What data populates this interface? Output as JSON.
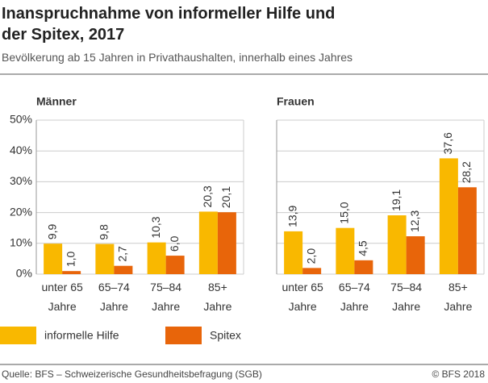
{
  "title": "Inanspruchnahme von informeller Hilfe und der Spitex, 2017",
  "subtitle": "Bevölkerung ab 15 Jahren in Privathaushalten, innerhalb eines Jahres",
  "source": "Quelle: BFS – Schweizerische Gesundheitsbefragung (SGB)",
  "credit": "© BFS 2018",
  "chart_data": [
    {
      "type": "bar",
      "title": "Männer",
      "categories": [
        "unter 65 Jahre",
        "65–74 Jahre",
        "75–84 Jahre",
        "85+ Jahre"
      ],
      "series": [
        {
          "name": "informelle Hilfe",
          "color": "#f9b800",
          "values": [
            9.9,
            9.8,
            10.3,
            20.3
          ],
          "value_labels": [
            "9,9",
            "9,8",
            "10,3",
            "20,3"
          ]
        },
        {
          "name": "Spitex",
          "color": "#e8650a",
          "values": [
            1.0,
            2.7,
            6.0,
            20.1
          ],
          "value_labels": [
            "1,0",
            "2,7",
            "6,0",
            "20,1"
          ]
        }
      ],
      "ylim": [
        0,
        50
      ],
      "yticks": [
        {
          "value": 0,
          "label": "0%"
        },
        {
          "value": 10,
          "label": "10%"
        },
        {
          "value": 20,
          "label": "20%"
        },
        {
          "value": 30,
          "label": "30%"
        },
        {
          "value": 40,
          "label": "40%"
        },
        {
          "value": 50,
          "label": "50%"
        }
      ],
      "grid": true
    },
    {
      "type": "bar",
      "title": "Frauen",
      "categories": [
        "unter 65 Jahre",
        "65–74 Jahre",
        "75–84 Jahre",
        "85+ Jahre"
      ],
      "series": [
        {
          "name": "informelle Hilfe",
          "color": "#f9b800",
          "values": [
            13.9,
            15.0,
            19.1,
            37.6
          ],
          "value_labels": [
            "13,9",
            "15,0",
            "19,1",
            "37,6"
          ]
        },
        {
          "name": "Spitex",
          "color": "#e8650a",
          "values": [
            2.0,
            4.5,
            12.3,
            28.2
          ],
          "value_labels": [
            "2,0",
            "4,5",
            "12,3",
            "28,2"
          ]
        }
      ],
      "ylim": [
        0,
        50
      ],
      "yticks": [
        0,
        10,
        20,
        30,
        40,
        50
      ],
      "tick_labels": false,
      "grid": true
    }
  ]
}
